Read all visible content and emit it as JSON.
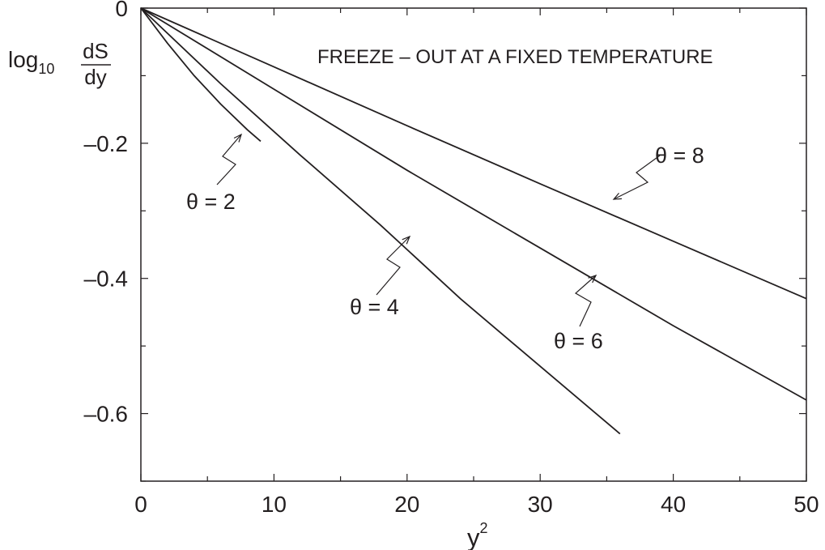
{
  "chart_data": {
    "type": "line",
    "title": "FREEZE – OUT AT A FIXED TEMPERATURE",
    "xlabel": {
      "base": "y",
      "sup": "2"
    },
    "ylabel": {
      "prefix": "log",
      "sub": "10",
      "numerator": "dS",
      "denominator": "dy"
    },
    "xlim": [
      0,
      50
    ],
    "ylim": [
      -0.7,
      0
    ],
    "x_ticks": [
      0,
      10,
      20,
      30,
      40,
      50
    ],
    "x_tick_labels": [
      "0",
      "10",
      "20",
      "30",
      "40",
      "50"
    ],
    "y_ticks": [
      0,
      -0.2,
      -0.4,
      -0.6
    ],
    "y_tick_labels": [
      "0",
      "–0.2",
      "–0.4",
      "–0.6"
    ],
    "grid": false,
    "series": [
      {
        "name": "θ = 2",
        "x": [
          0,
          2,
          4,
          6,
          8,
          9
        ],
        "y": [
          0,
          -0.052,
          -0.1,
          -0.142,
          -0.18,
          -0.197
        ]
      },
      {
        "name": "θ = 4",
        "x": [
          0,
          6,
          12,
          18,
          24,
          30,
          36
        ],
        "y": [
          0,
          -0.112,
          -0.218,
          -0.321,
          -0.43,
          -0.53,
          -0.63
        ]
      },
      {
        "name": "θ = 6",
        "x": [
          0,
          10,
          20,
          30,
          40,
          50
        ],
        "y": [
          0,
          -0.12,
          -0.24,
          -0.355,
          -0.47,
          -0.58
        ]
      },
      {
        "name": "θ = 8",
        "x": [
          0,
          10,
          20,
          30,
          40,
          50
        ],
        "y": [
          0,
          -0.087,
          -0.174,
          -0.26,
          -0.345,
          -0.43
        ]
      }
    ],
    "annotations": [
      {
        "label": "θ = 2",
        "series": "θ = 2"
      },
      {
        "label": "θ = 4",
        "series": "θ = 4"
      },
      {
        "label": "θ = 6",
        "series": "θ = 6"
      },
      {
        "label": "θ = 8",
        "series": "θ = 8"
      }
    ]
  }
}
